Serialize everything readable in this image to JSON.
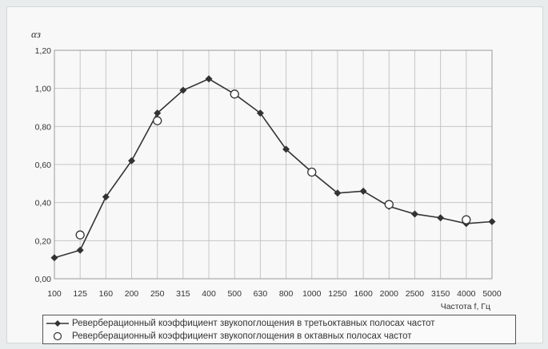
{
  "chart_data": {
    "type": "line",
    "ylabel": "αз",
    "xlabel": "Частота f, Гц",
    "categories": [
      "100",
      "125",
      "160",
      "200",
      "250",
      "315",
      "400",
      "500",
      "630",
      "800",
      "1000",
      "1250",
      "1600",
      "2000",
      "2500",
      "3150",
      "4000",
      "5000"
    ],
    "yticks": [
      "0,00",
      "0,20",
      "0,40",
      "0,60",
      "0,80",
      "1,00",
      "1,20"
    ],
    "ylim": [
      0,
      1.2
    ],
    "grid": true,
    "legend_position": "bottom",
    "series": [
      {
        "name": "Реверберационный коэффициент звукопоглощения в третьоктавных полосах частот",
        "marker": "diamond",
        "color": "#333333",
        "values": [
          0.11,
          0.15,
          0.43,
          0.62,
          0.87,
          0.99,
          1.05,
          0.97,
          0.87,
          0.68,
          0.56,
          0.45,
          0.46,
          0.38,
          0.34,
          0.32,
          0.29,
          0.3
        ]
      },
      {
        "name": "Реверберационный коэффициент звукопоглощения в октавных полосах частот",
        "marker": "open-circle",
        "color": "#333333",
        "values": [
          null,
          0.23,
          null,
          null,
          0.83,
          null,
          null,
          0.97,
          null,
          null,
          0.56,
          null,
          null,
          0.39,
          null,
          null,
          0.31,
          null
        ]
      }
    ]
  }
}
